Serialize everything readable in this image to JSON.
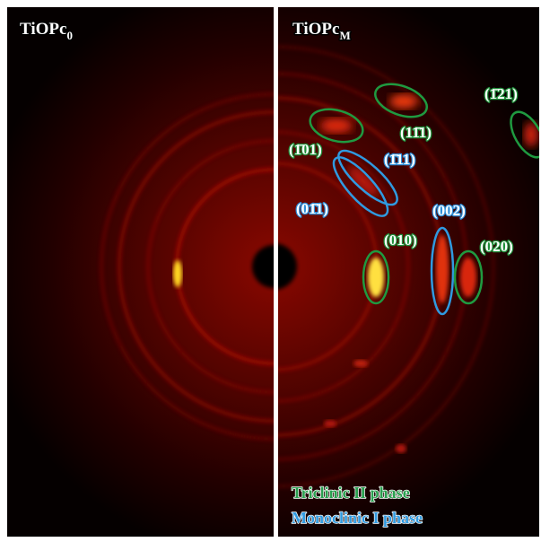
{
  "panels": [
    {
      "title": {
        "main": "TiOPc",
        "sub": "0"
      }
    },
    {
      "title": {
        "main": "TiOPc",
        "sub": "M"
      }
    }
  ],
  "annotations": [
    {
      "label": "(1̄01)"
    },
    {
      "label": "(11̄1)"
    },
    {
      "label": "(1̄21)"
    },
    {
      "label": "(1̄11)"
    },
    {
      "label": "(01̄1)"
    },
    {
      "label": "(002)"
    },
    {
      "label": "(010)"
    },
    {
      "label": "(020)"
    }
  ],
  "legend": [
    "Triclinic II phase",
    "Monoclinic I phase"
  ]
}
